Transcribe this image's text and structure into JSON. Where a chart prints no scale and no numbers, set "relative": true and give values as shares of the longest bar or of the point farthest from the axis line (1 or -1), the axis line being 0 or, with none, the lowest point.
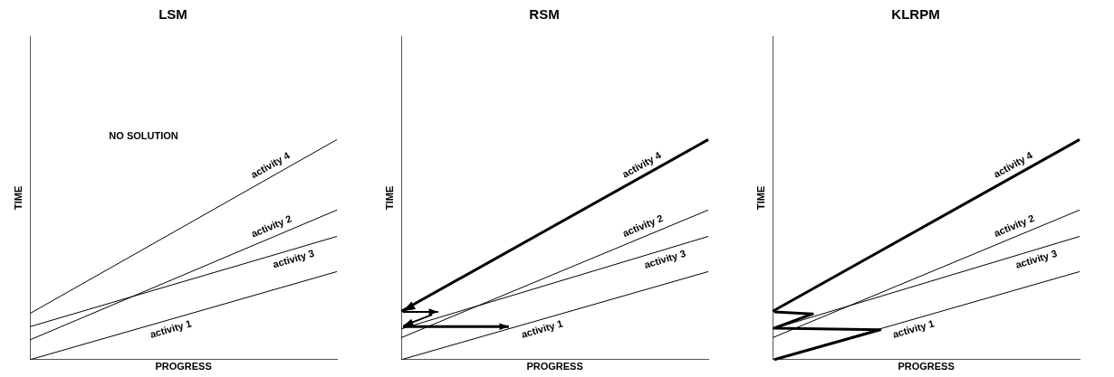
{
  "chart_data": [
    {
      "type": "line",
      "title": "LSM",
      "xlabel": "PROGRESS",
      "ylabel": "TIME",
      "relative": true,
      "tick_labels": false,
      "marker": "none",
      "categories": [
        null,
        null
      ],
      "annotations": [
        "NO SOLUTION"
      ],
      "series": [
        {
          "name": "activity 1",
          "color": "#000000",
          "values": [
            0,
            0.4
          ]
        },
        {
          "name": "activity 2",
          "color": "#000000",
          "values": [
            0.09,
            0.68
          ]
        },
        {
          "name": "activity 3",
          "color": "#000000",
          "values": [
            0.15,
            0.56
          ]
        },
        {
          "name": "activity 4",
          "color": "#000000",
          "values": [
            0.21,
            1
          ]
        }
      ]
    },
    {
      "type": "line",
      "title": "RSM",
      "xlabel": "PROGRESS",
      "ylabel": "TIME",
      "relative": true,
      "tick_labels": false,
      "categories": [
        null,
        null
      ],
      "series": [
        {
          "name": "activity 1",
          "color": "#000000",
          "values": [
            0,
            0.4
          ]
        },
        {
          "name": "activity 2",
          "color": "#000000",
          "values": [
            0.1,
            0.68
          ]
        },
        {
          "name": "activity 3",
          "color": "#000000",
          "values": [
            0.14,
            0.56
          ]
        },
        {
          "name": "activity 4",
          "color": "#000000",
          "values": [
            0.22,
            1
          ]
        }
      ]
    },
    {
      "type": "line",
      "title": "KLRPM",
      "xlabel": "PROGRESS",
      "ylabel": "TIME",
      "relative": true,
      "tick_labels": false,
      "marker": "none",
      "categories": [
        null,
        null
      ],
      "series": [
        {
          "name": "activity 1",
          "color": "#000000",
          "values": [
            0,
            0.4
          ]
        },
        {
          "name": "activity 2",
          "color": "#000000",
          "values": [
            0.1,
            0.68
          ]
        },
        {
          "name": "activity 3",
          "color": "#000000",
          "values": [
            0.14,
            0.56
          ]
        },
        {
          "name": "activity 4",
          "color": "#000000",
          "values": [
            0.22,
            1
          ]
        }
      ]
    }
  ]
}
